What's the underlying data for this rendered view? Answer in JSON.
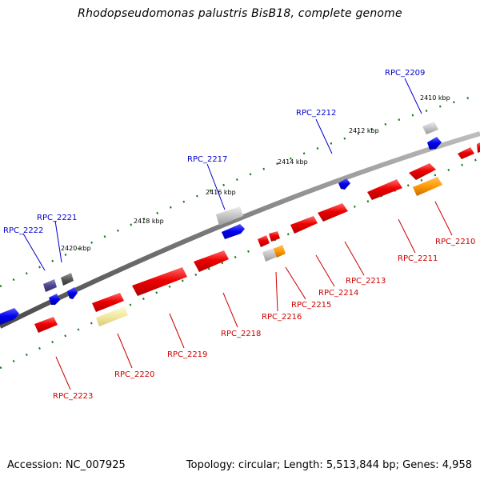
{
  "title": "Rhodopseudomonas palustris BisB18, complete genome",
  "footer": {
    "accession": "Accession: NC_007925",
    "summary": "Topology: circular; Length: 5,513,844 bp; Genes: 4,958"
  },
  "colors": {
    "backbone": "#7f7f7f",
    "tick": "#1e7a1e",
    "label_forward": "#0000cc",
    "label_reverse": "#cc0000"
  },
  "scale_labels": [
    "2410 kbp",
    "2412 kbp",
    "2414 kbp",
    "2416 kbp",
    "2418 kbp",
    "2420 kbp"
  ],
  "genes": [
    {
      "name": "RPC_2209",
      "strand": "forward"
    },
    {
      "name": "RPC_2212",
      "strand": "forward"
    },
    {
      "name": "RPC_2217",
      "strand": "forward"
    },
    {
      "name": "RPC_2221",
      "strand": "forward"
    },
    {
      "name": "RPC_2222",
      "strand": "forward"
    },
    {
      "name": "RPC_2210",
      "strand": "reverse"
    },
    {
      "name": "RPC_2211",
      "strand": "reverse"
    },
    {
      "name": "RPC_2213",
      "strand": "reverse"
    },
    {
      "name": "RPC_2214",
      "strand": "reverse"
    },
    {
      "name": "RPC_2215",
      "strand": "reverse"
    },
    {
      "name": "RPC_2216",
      "strand": "reverse"
    },
    {
      "name": "RPC_2218",
      "strand": "reverse"
    },
    {
      "name": "RPC_2219",
      "strand": "reverse"
    },
    {
      "name": "RPC_2220",
      "strand": "reverse"
    },
    {
      "name": "RPC_2223",
      "strand": "reverse"
    }
  ]
}
